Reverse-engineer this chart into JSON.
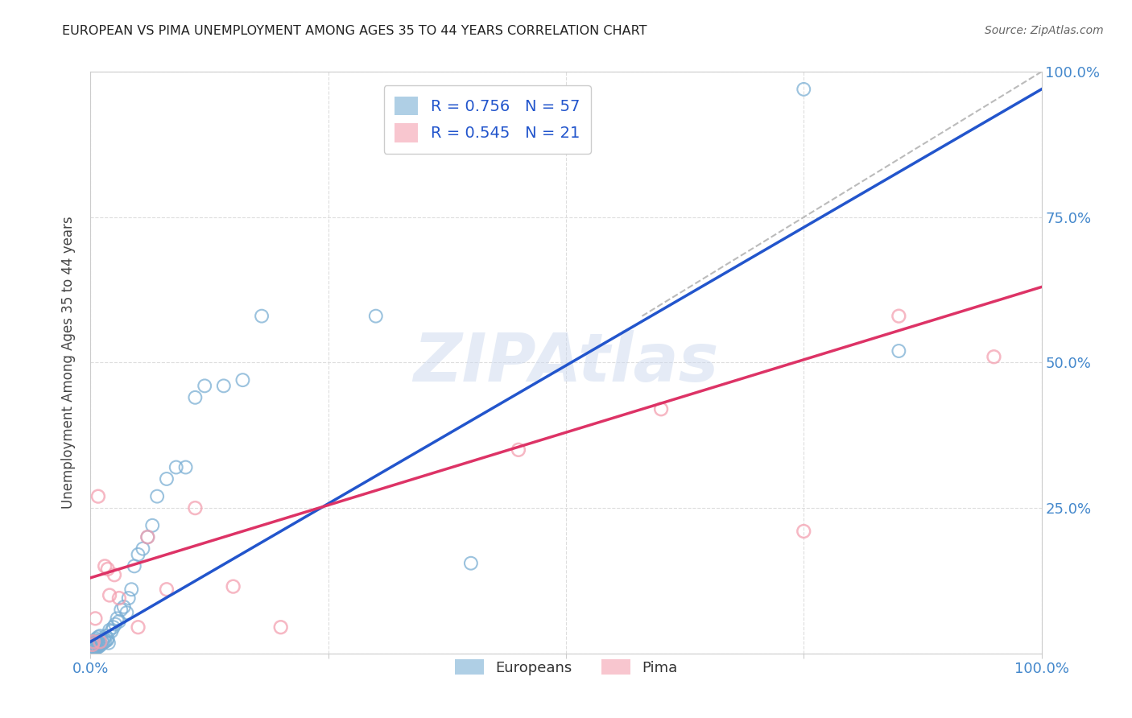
{
  "title": "EUROPEAN VS PIMA UNEMPLOYMENT AMONG AGES 35 TO 44 YEARS CORRELATION CHART",
  "source": "Source: ZipAtlas.com",
  "ylabel": "Unemployment Among Ages 35 to 44 years",
  "xlim": [
    0,
    1
  ],
  "ylim": [
    0,
    1
  ],
  "xticks": [
    0.0,
    0.25,
    0.5,
    0.75,
    1.0
  ],
  "yticks": [
    0.0,
    0.25,
    0.5,
    0.75,
    1.0
  ],
  "xticklabels": [
    "0.0%",
    "",
    "",
    "",
    "100.0%"
  ],
  "yticklabels_right": [
    "",
    "25.0%",
    "50.0%",
    "75.0%",
    "100.0%"
  ],
  "background_color": "#ffffff",
  "watermark": "ZIPAtlas",
  "legend_european_label": "Europeans",
  "legend_pima_label": "Pima",
  "european_R": "0.756",
  "european_N": "57",
  "pima_R": "0.545",
  "pima_N": "21",
  "european_color": "#7bafd4",
  "pima_color": "#f4a0b0",
  "european_line_color": "#2255cc",
  "pima_line_color": "#dd3366",
  "legend_text_color": "#2255cc",
  "diag_line_color": "#bbbbbb",
  "title_color": "#222222",
  "source_color": "#666666",
  "tick_color": "#4488cc",
  "ylabel_color": "#444444",
  "european_scatter_x": [
    0.001,
    0.002,
    0.002,
    0.003,
    0.003,
    0.004,
    0.004,
    0.005,
    0.005,
    0.006,
    0.006,
    0.007,
    0.007,
    0.008,
    0.008,
    0.009,
    0.009,
    0.01,
    0.01,
    0.011,
    0.012,
    0.013,
    0.014,
    0.015,
    0.016,
    0.017,
    0.018,
    0.019,
    0.02,
    0.022,
    0.024,
    0.026,
    0.028,
    0.03,
    0.032,
    0.035,
    0.038,
    0.04,
    0.043,
    0.046,
    0.05,
    0.055,
    0.06,
    0.065,
    0.07,
    0.08,
    0.09,
    0.1,
    0.11,
    0.12,
    0.14,
    0.16,
    0.18,
    0.3,
    0.4,
    0.75,
    0.85
  ],
  "european_scatter_y": [
    0.005,
    0.008,
    0.012,
    0.006,
    0.015,
    0.01,
    0.018,
    0.008,
    0.02,
    0.012,
    0.025,
    0.01,
    0.022,
    0.015,
    0.028,
    0.012,
    0.018,
    0.02,
    0.03,
    0.015,
    0.022,
    0.018,
    0.025,
    0.02,
    0.03,
    0.022,
    0.025,
    0.018,
    0.04,
    0.038,
    0.045,
    0.05,
    0.06,
    0.055,
    0.075,
    0.08,
    0.07,
    0.095,
    0.11,
    0.15,
    0.17,
    0.18,
    0.2,
    0.22,
    0.27,
    0.3,
    0.32,
    0.32,
    0.44,
    0.46,
    0.46,
    0.47,
    0.58,
    0.58,
    0.155,
    0.97,
    0.52
  ],
  "pima_scatter_x": [
    0.002,
    0.003,
    0.005,
    0.008,
    0.01,
    0.015,
    0.018,
    0.02,
    0.025,
    0.03,
    0.05,
    0.06,
    0.08,
    0.11,
    0.15,
    0.2,
    0.45,
    0.6,
    0.75,
    0.85,
    0.95
  ],
  "pima_scatter_y": [
    0.015,
    0.02,
    0.06,
    0.27,
    0.02,
    0.15,
    0.145,
    0.1,
    0.135,
    0.095,
    0.045,
    0.2,
    0.11,
    0.25,
    0.115,
    0.045,
    0.35,
    0.42,
    0.21,
    0.58,
    0.51
  ],
  "european_trend_x": [
    0.0,
    1.0
  ],
  "european_trend_y": [
    0.02,
    0.97
  ],
  "pima_trend_x": [
    0.0,
    1.0
  ],
  "pima_trend_y": [
    0.13,
    0.63
  ],
  "diag_trend_x": [
    0.58,
    1.02
  ],
  "diag_trend_y": [
    0.58,
    1.02
  ],
  "grid_color": "#dddddd",
  "grid_linestyle": "--",
  "grid_linewidth": 0.8
}
